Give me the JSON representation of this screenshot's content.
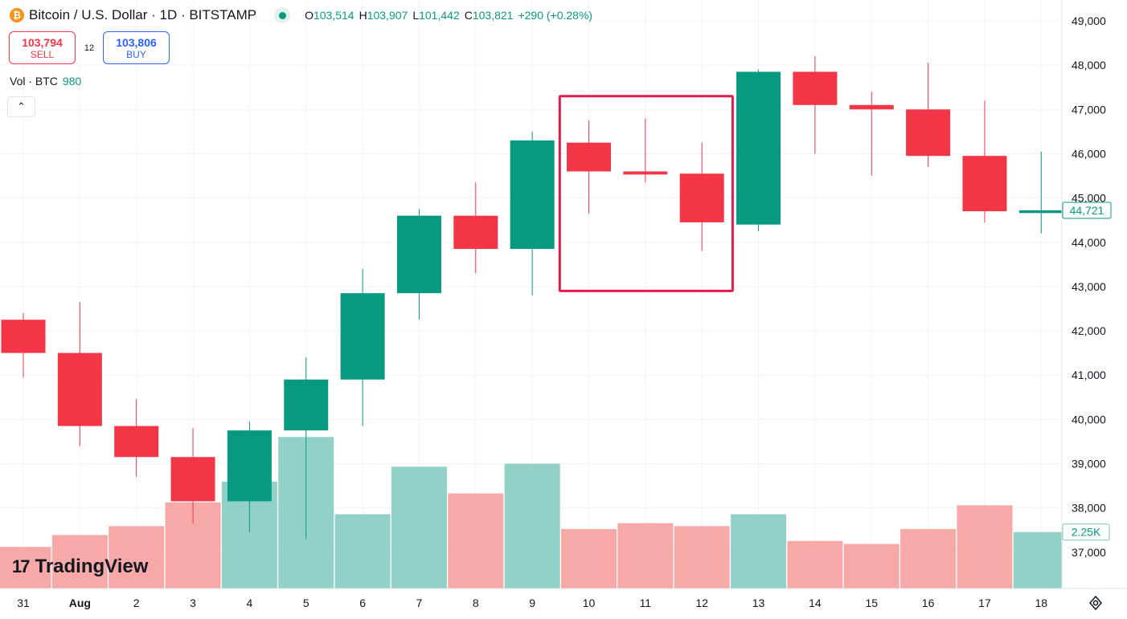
{
  "legend": {
    "coin_glyph": "₿",
    "title": "Bitcoin / U.S. Dollar · 1D · BITSTAMP",
    "o_key": "O",
    "o_val": "103,514",
    "h_key": "H",
    "h_val": "103,907",
    "l_key": "L",
    "l_val": "101,442",
    "c_key": "C",
    "c_val": "103,821",
    "change": "+290 (+0.28%)"
  },
  "trade": {
    "sell_price": "103,794",
    "sell_label": "SELL",
    "spread": "12",
    "buy_price": "103,806",
    "buy_label": "BUY"
  },
  "volume": {
    "label": "Vol · BTC",
    "value": "980"
  },
  "collapse_glyph": "⌃",
  "logo": {
    "mark": "17",
    "text": "TradingView"
  },
  "colors": {
    "up": "#089981",
    "down": "#f23645",
    "up_vol": "#92d1c8",
    "down_vol": "#f7a9a7",
    "highlight": "#e5194b"
  },
  "chart_data": {
    "type": "candlestick",
    "x_labels": [
      "31",
      "Aug",
      "2",
      "3",
      "4",
      "5",
      "6",
      "7",
      "8",
      "9",
      "10",
      "11",
      "12",
      "13",
      "14",
      "15",
      "16",
      "17",
      "18"
    ],
    "y_ticks": [
      "49,000",
      "48,000",
      "47,000",
      "46,000",
      "45,000",
      "44,000",
      "43,000",
      "42,000",
      "41,000",
      "40,000",
      "39,000",
      "38,000",
      "37,000"
    ],
    "ylim": [
      36200,
      49400
    ],
    "last_price_label": "44,721",
    "volume_label": "2.25K",
    "candles": [
      {
        "x": "31",
        "open": 42250,
        "high": 42400,
        "low": 40950,
        "close": 41500
      },
      {
        "x": "Aug",
        "open": 41500,
        "high": 42650,
        "low": 39400,
        "close": 39850
      },
      {
        "x": "2",
        "open": 39850,
        "high": 40450,
        "low": 38700,
        "close": 39150
      },
      {
        "x": "3",
        "open": 39150,
        "high": 39800,
        "low": 37650,
        "close": 38150
      },
      {
        "x": "4",
        "open": 38150,
        "high": 39950,
        "low": 37450,
        "close": 39750
      },
      {
        "x": "5",
        "open": 39750,
        "high": 41400,
        "low": 37300,
        "close": 40900
      },
      {
        "x": "6",
        "open": 40900,
        "high": 43400,
        "low": 39850,
        "close": 42850
      },
      {
        "x": "7",
        "open": 42850,
        "high": 44750,
        "low": 42250,
        "close": 44600
      },
      {
        "x": "8",
        "open": 44600,
        "high": 45350,
        "low": 43300,
        "close": 43850
      },
      {
        "x": "9",
        "open": 43850,
        "high": 46500,
        "low": 42800,
        "close": 46300
      },
      {
        "x": "10",
        "open": 46250,
        "high": 46750,
        "low": 44650,
        "close": 45600
      },
      {
        "x": "11",
        "open": 45600,
        "high": 46800,
        "low": 45350,
        "close": 45530
      },
      {
        "x": "12",
        "open": 45550,
        "high": 46250,
        "low": 43800,
        "close": 44450
      },
      {
        "x": "13",
        "open": 44400,
        "high": 47900,
        "low": 44250,
        "close": 47850
      },
      {
        "x": "14",
        "open": 47850,
        "high": 48200,
        "low": 46000,
        "close": 47100
      },
      {
        "x": "15",
        "open": 47100,
        "high": 47400,
        "low": 45500,
        "close": 47000
      },
      {
        "x": "16",
        "open": 47000,
        "high": 48050,
        "low": 45700,
        "close": 45950
      },
      {
        "x": "17",
        "open": 45950,
        "high": 47200,
        "low": 44450,
        "close": 44700
      },
      {
        "x": "18",
        "open": 44660,
        "high": 46050,
        "low": 44200,
        "close": 44721
      }
    ],
    "volume_bars": [
      0.14,
      0.18,
      0.21,
      0.29,
      0.36,
      0.51,
      0.25,
      0.41,
      0.32,
      0.42,
      0.2,
      0.22,
      0.21,
      0.25,
      0.16,
      0.15,
      0.2,
      0.28,
      0.19
    ],
    "highlight_box": {
      "from": "10",
      "to": "12",
      "top": 47300,
      "bottom": 42900
    }
  }
}
